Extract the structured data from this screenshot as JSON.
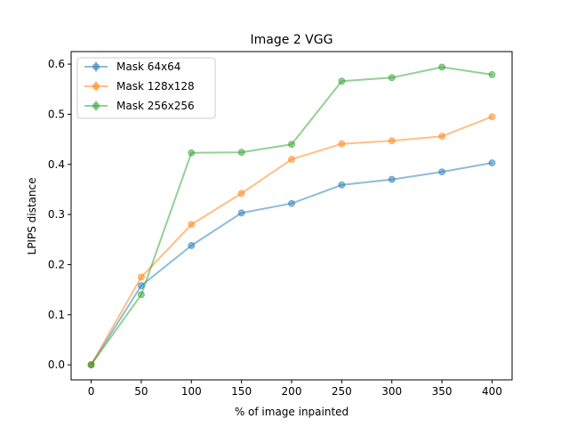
{
  "chart_data": {
    "type": "line",
    "title": "Image 2 VGG",
    "xlabel": "% of image inpainted",
    "ylabel": "LPIPS distance",
    "x": [
      0,
      50,
      100,
      150,
      200,
      250,
      300,
      350,
      400
    ],
    "xlim": [
      -20,
      420
    ],
    "ylim": [
      -0.03,
      0.625
    ],
    "xticks": [
      0,
      50,
      100,
      150,
      200,
      250,
      300,
      350,
      400
    ],
    "yticks": [
      0.0,
      0.1,
      0.2,
      0.3,
      0.4,
      0.5,
      0.6
    ],
    "ytick_labels": [
      "0.0",
      "0.1",
      "0.2",
      "0.3",
      "0.4",
      "0.5",
      "0.6"
    ],
    "grid": false,
    "legend_position": "top-left",
    "series": [
      {
        "name": "Mask 64x64",
        "color": "#1f77b4",
        "values": [
          0.0,
          0.158,
          0.238,
          0.303,
          0.322,
          0.359,
          0.37,
          0.385,
          0.403
        ]
      },
      {
        "name": "Mask 128x128",
        "color": "#ff7f0e",
        "values": [
          0.0,
          0.175,
          0.28,
          0.342,
          0.41,
          0.441,
          0.447,
          0.456,
          0.495
        ]
      },
      {
        "name": "Mask 256x256",
        "color": "#2ca02c",
        "values": [
          0.0,
          0.14,
          0.423,
          0.424,
          0.44,
          0.566,
          0.573,
          0.594,
          0.579
        ]
      }
    ]
  }
}
